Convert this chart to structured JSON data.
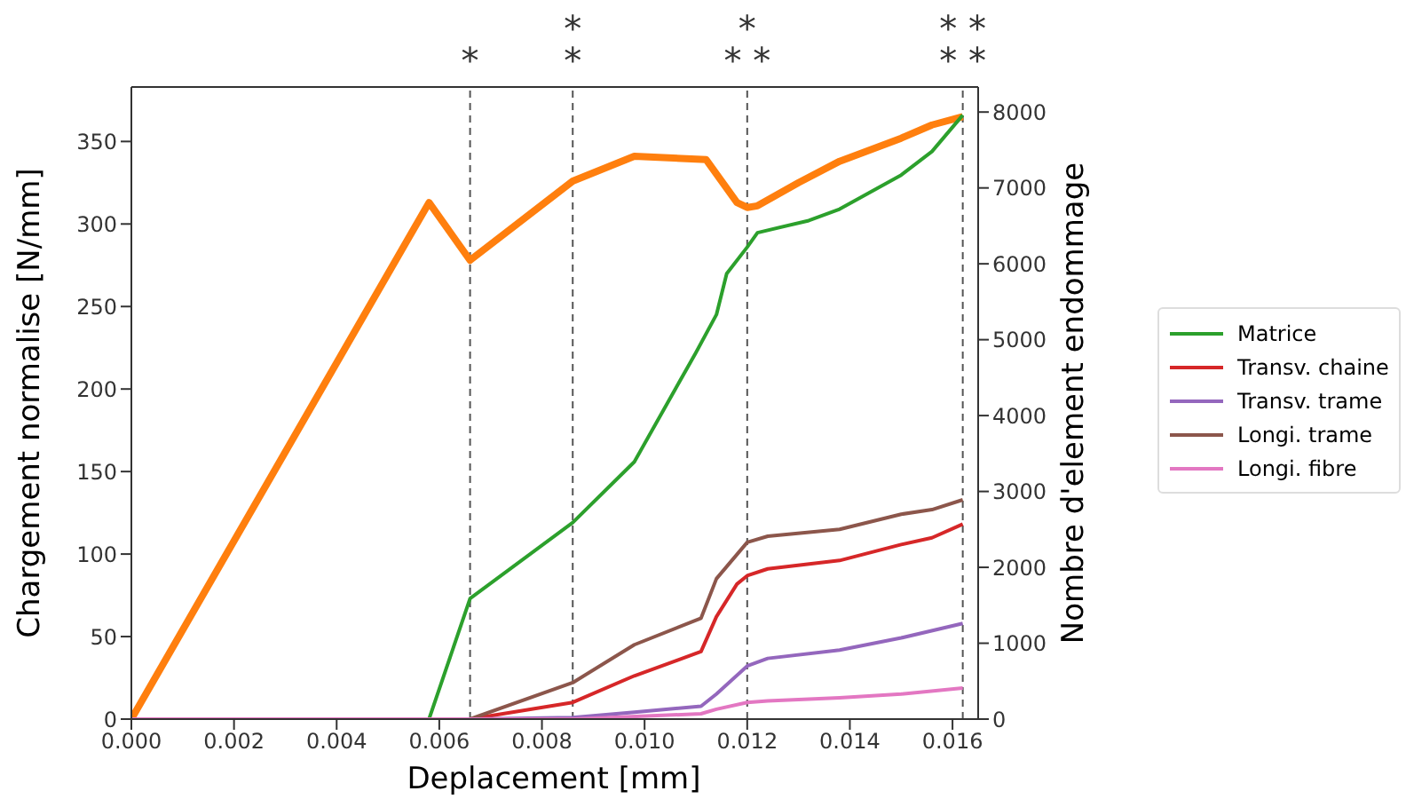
{
  "chart_data": {
    "type": "line",
    "xlabel": "Deplacement [mm]",
    "ylabel": "Chargement normalise [N/mm]",
    "y2label": "Nombre d'element endommage",
    "xlim": [
      0,
      0.0165
    ],
    "xticks": [
      {
        "value": 0,
        "label": "0.000"
      },
      {
        "value": 0.002,
        "label": "0.002"
      },
      {
        "value": 0.004,
        "label": "0.004"
      },
      {
        "value": 0.006,
        "label": "0.006"
      },
      {
        "value": 0.008,
        "label": "0.008"
      },
      {
        "value": 0.01,
        "label": "0.010"
      },
      {
        "value": 0.012,
        "label": "0.012"
      },
      {
        "value": 0.014,
        "label": "0.014"
      },
      {
        "value": 0.016,
        "label": "0.016"
      }
    ],
    "ylim": [
      0,
      383
    ],
    "yticks": [
      0,
      50,
      100,
      150,
      200,
      250,
      300,
      350
    ],
    "y2lim": [
      0,
      8330
    ],
    "y2ticks": [
      0,
      1000,
      2000,
      3000,
      4000,
      5000,
      6000,
      7000,
      8000
    ],
    "legend": "right",
    "marker": "none",
    "line_style": "solid",
    "ref_lines": [
      {
        "axis": "x",
        "value": 0.0066,
        "label": "*",
        "color": "#555555",
        "line_style": "dashed"
      },
      {
        "axis": "x",
        "value": 0.0086,
        "label": "*\n*",
        "color": "#555555",
        "line_style": "dashed"
      },
      {
        "axis": "x",
        "value": 0.012,
        "label": "*\n* *",
        "color": "#555555",
        "line_style": "dashed"
      },
      {
        "axis": "x",
        "value": 0.0162,
        "label": "* *\n* *",
        "color": "#555555",
        "line_style": "dashed"
      }
    ],
    "series": [
      {
        "color": "#ff7f0e",
        "x": [
          0,
          0.0058,
          0.0066,
          0.0086,
          0.0098,
          0.0112,
          0.0118,
          0.012,
          0.0122,
          0.013,
          0.0138,
          0.015,
          0.0156,
          0.0162
        ],
        "values": [
          0,
          313,
          278,
          326,
          341,
          339,
          313,
          310,
          311,
          325,
          338,
          352,
          360,
          365
        ]
      },
      {
        "name": "Matrice",
        "color": "#2ca02c",
        "axis": "y2",
        "x": [
          0,
          0.0058,
          0.0066,
          0.0086,
          0.0098,
          0.011,
          0.0114,
          0.0116,
          0.012,
          0.0122,
          0.0132,
          0.0138,
          0.015,
          0.0156,
          0.0162
        ],
        "values": [
          0,
          0,
          1590,
          2590,
          3390,
          4830,
          5330,
          5870,
          6220,
          6410,
          6570,
          6720,
          7170,
          7480,
          7960
        ]
      },
      {
        "name": "Transv. chaine",
        "color": "#d62728",
        "axis": "y2",
        "x": [
          0,
          0.0066,
          0.0086,
          0.0098,
          0.0111,
          0.0114,
          0.0118,
          0.012,
          0.0124,
          0.0138,
          0.015,
          0.0156,
          0.0162
        ],
        "values": [
          0,
          0,
          220,
          570,
          890,
          1350,
          1780,
          1890,
          1980,
          2090,
          2300,
          2390,
          2570
        ]
      },
      {
        "name": "Transv. trame",
        "color": "#9467bd",
        "axis": "y2",
        "x": [
          0,
          0.0066,
          0.0086,
          0.0098,
          0.0111,
          0.0114,
          0.012,
          0.0124,
          0.0138,
          0.015,
          0.0162
        ],
        "values": [
          0,
          0,
          20,
          90,
          170,
          330,
          700,
          800,
          910,
          1070,
          1260
        ]
      },
      {
        "name": "Longi. trame",
        "color": "#8c564b",
        "axis": "y2",
        "x": [
          0,
          0.0066,
          0.0086,
          0.0098,
          0.0111,
          0.0114,
          0.012,
          0.0124,
          0.0138,
          0.015,
          0.0156,
          0.0162
        ],
        "values": [
          0,
          0,
          480,
          980,
          1330,
          1850,
          2330,
          2410,
          2500,
          2700,
          2760,
          2890
        ]
      },
      {
        "name": "Longi. fibre",
        "color": "#e377c2",
        "axis": "y2",
        "x": [
          0,
          0.0086,
          0.0111,
          0.0114,
          0.012,
          0.0124,
          0.0138,
          0.015,
          0.0162
        ],
        "values": [
          0,
          0,
          70,
          130,
          220,
          240,
          280,
          330,
          410
        ]
      }
    ]
  }
}
